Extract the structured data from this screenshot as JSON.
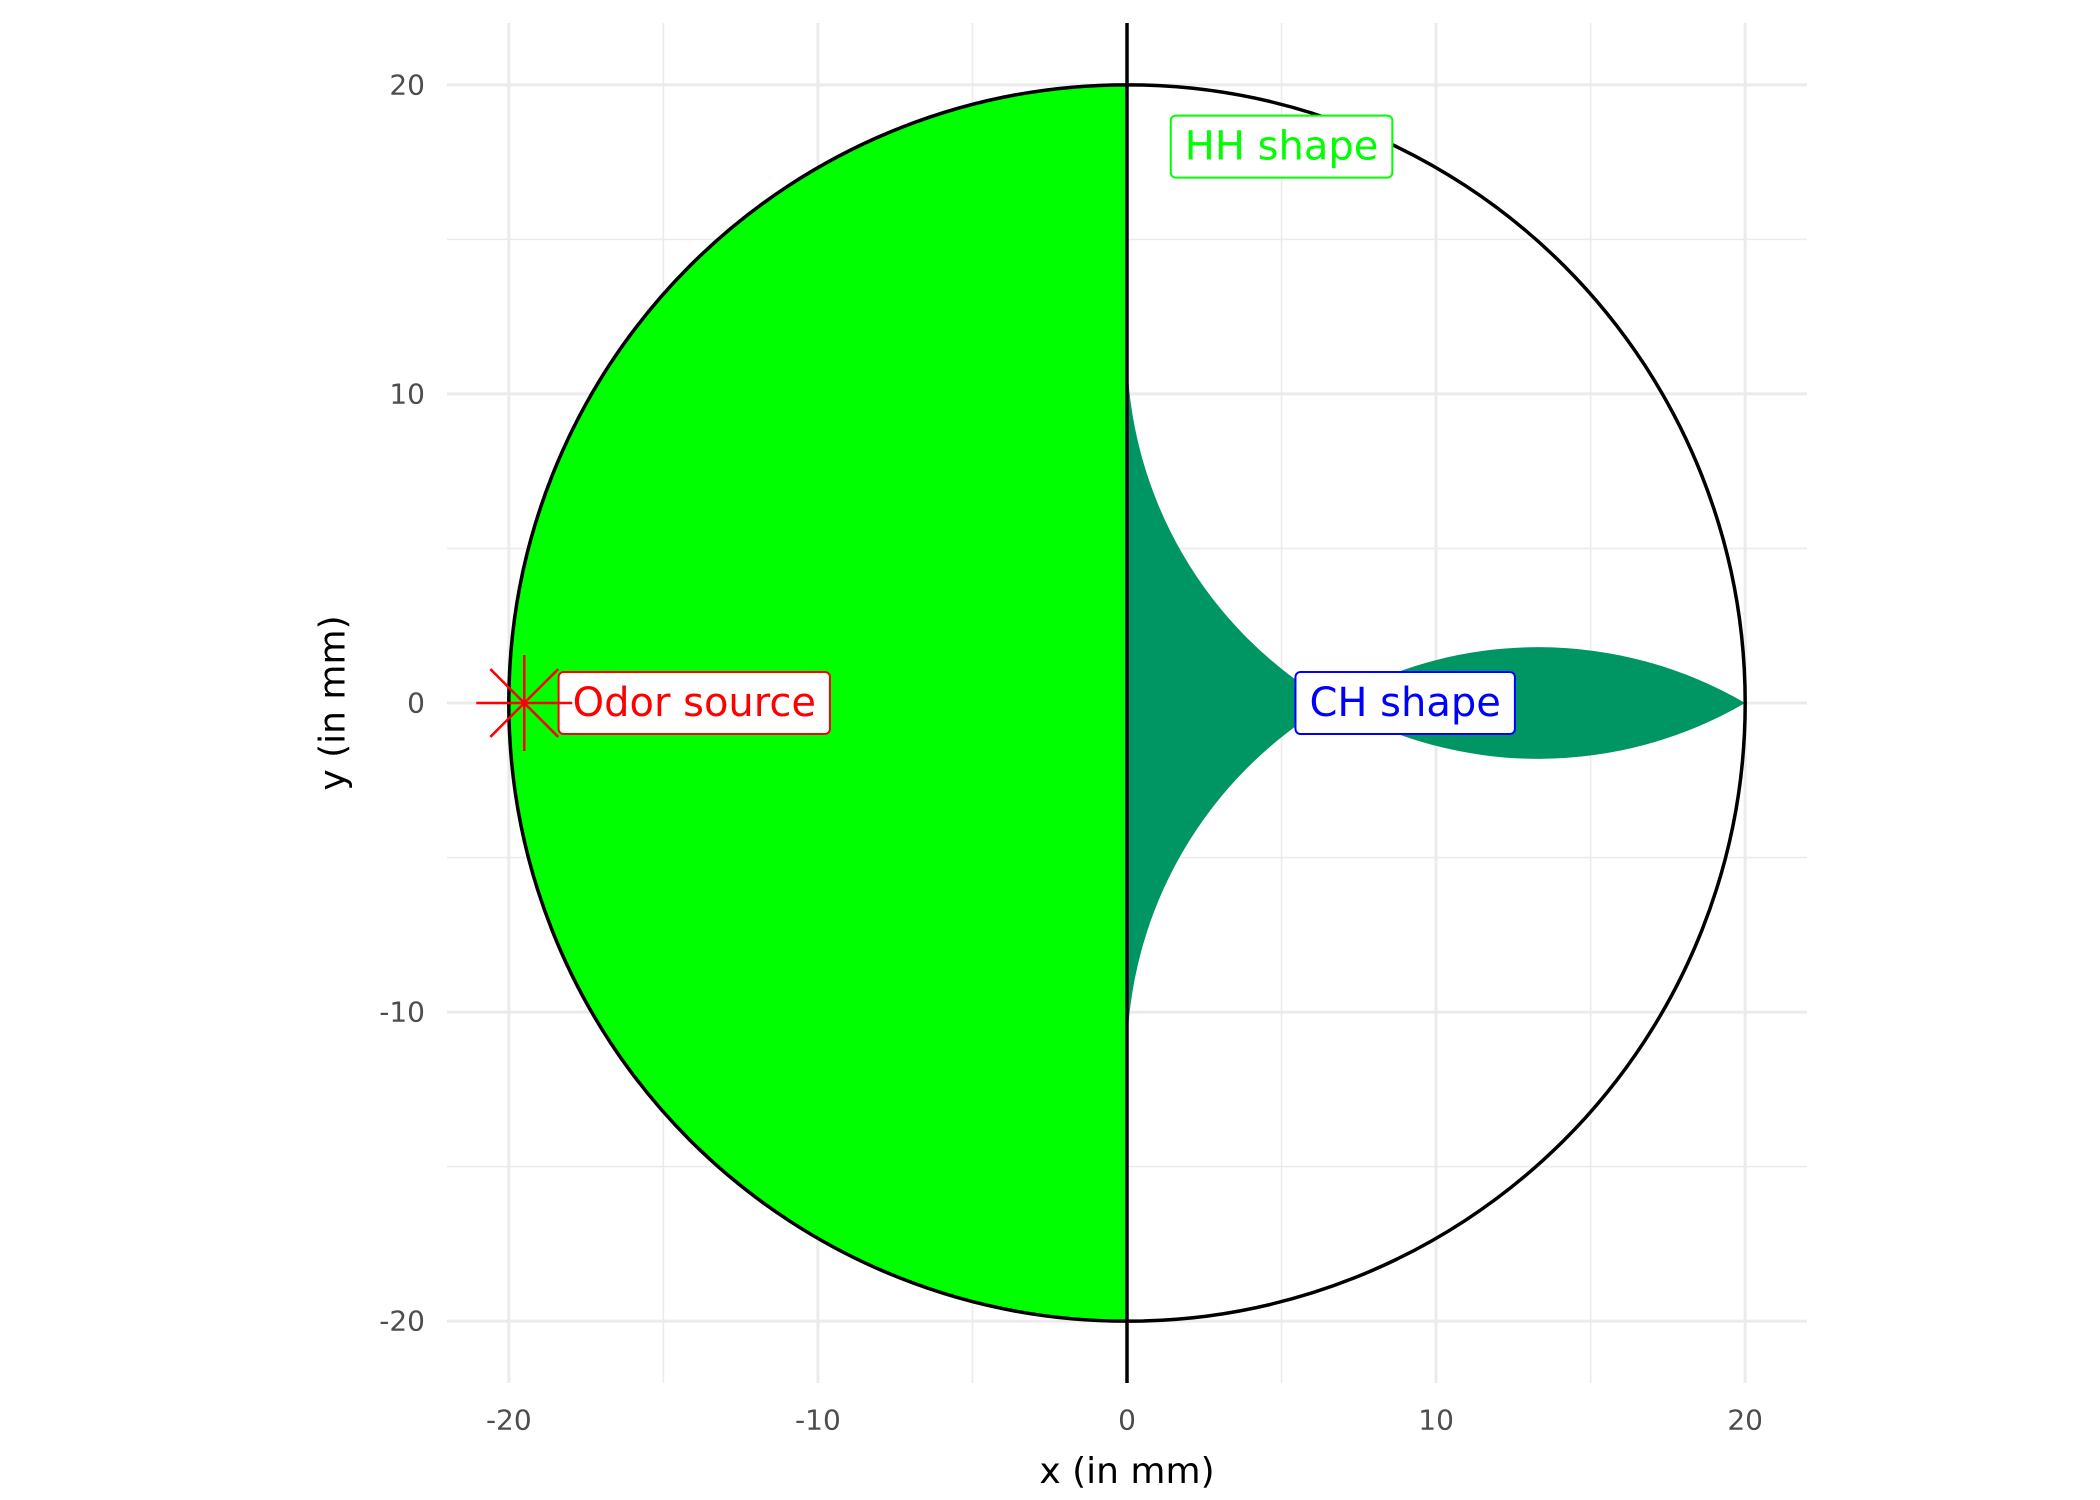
{
  "chart_data": {
    "type": "area",
    "title": "",
    "xlabel": "x (in mm)",
    "ylabel": "y (in mm)",
    "xlim": [
      -22,
      22
    ],
    "ylim": [
      -22,
      22
    ],
    "x_ticks": [
      -20,
      -10,
      0,
      10,
      20
    ],
    "y_ticks": [
      -20,
      -10,
      0,
      10,
      20
    ],
    "x_tick_labels": [
      "-20",
      "-10",
      "0",
      "10",
      "20"
    ],
    "y_tick_labels": [
      "-20",
      "-10",
      "0",
      "10",
      "20"
    ],
    "grid": true,
    "arena": {
      "center": [
        0,
        0
      ],
      "radius": 20
    },
    "shapes": [
      {
        "name": "HH shape",
        "label": "HH shape",
        "fill": "#00ff00",
        "region": "left half of arena",
        "label_position": [
          5,
          18
        ]
      },
      {
        "name": "CH shape",
        "label": "CH shape",
        "fill": "#9a9aff",
        "region": "lens from x = -20 to x = 3.2, height ±11.5 at x = 0",
        "lens_right_x": 3.2,
        "lens_half_height_at_x0": 11.5,
        "label_position": [
          9,
          0
        ]
      },
      {
        "name": "overlap",
        "fill": "#009663",
        "region": "lens area inside left half"
      }
    ],
    "odor_source": {
      "label": "Odor source",
      "x": -19.5,
      "y": 0,
      "color": "#ff0000",
      "label_position": [
        -14,
        0
      ]
    },
    "colors": {
      "hh": "#00ff00",
      "ch": "#0000ff",
      "odor": "#ff0000",
      "grid": "#ebebeb"
    }
  }
}
